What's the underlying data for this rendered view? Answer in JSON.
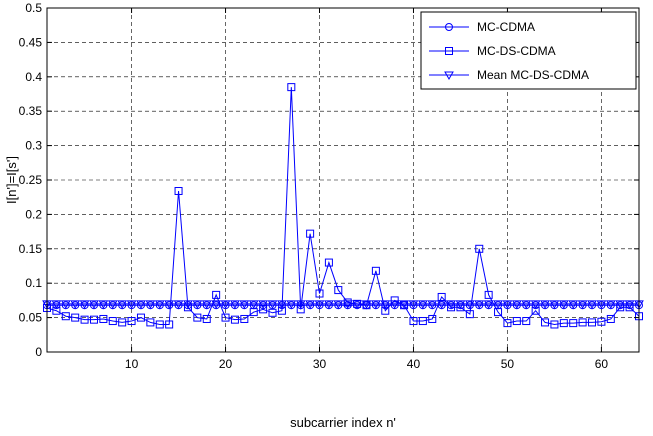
{
  "chart_data": {
    "type": "line",
    "xlabel": "subcarrier index n'",
    "ylabel": "I[n']=I[s']",
    "xlim": [
      1,
      64
    ],
    "ylim": [
      0,
      0.5
    ],
    "xticks": [
      10,
      20,
      30,
      40,
      50,
      60
    ],
    "yticks": [
      0,
      0.05,
      0.1,
      0.15,
      0.2,
      0.25,
      0.3,
      0.35,
      0.4,
      0.45,
      0.5
    ],
    "ytick_labels": [
      "0",
      "0.05",
      "0.1",
      "0.15",
      "0.2",
      "0.25",
      "0.3",
      "0.35",
      "0.4",
      "0.45",
      "0.5"
    ],
    "grid": true,
    "legend_position": "top-right",
    "x": [
      1,
      2,
      3,
      4,
      5,
      6,
      7,
      8,
      9,
      10,
      11,
      12,
      13,
      14,
      15,
      16,
      17,
      18,
      19,
      20,
      21,
      22,
      23,
      24,
      25,
      26,
      27,
      28,
      29,
      30,
      31,
      32,
      33,
      34,
      35,
      36,
      37,
      38,
      39,
      40,
      41,
      42,
      43,
      44,
      45,
      46,
      47,
      48,
      49,
      50,
      51,
      52,
      53,
      54,
      55,
      56,
      57,
      58,
      59,
      60,
      61,
      62,
      63,
      64
    ],
    "series": [
      {
        "name": "MC-CDMA",
        "marker": "circle",
        "color": "#0000ff",
        "values": [
          0.068,
          0.068,
          0.068,
          0.068,
          0.068,
          0.068,
          0.068,
          0.068,
          0.068,
          0.068,
          0.068,
          0.068,
          0.068,
          0.068,
          0.068,
          0.068,
          0.068,
          0.068,
          0.068,
          0.068,
          0.068,
          0.068,
          0.068,
          0.068,
          0.068,
          0.068,
          0.068,
          0.068,
          0.068,
          0.068,
          0.068,
          0.068,
          0.068,
          0.068,
          0.068,
          0.068,
          0.068,
          0.068,
          0.068,
          0.068,
          0.068,
          0.068,
          0.068,
          0.068,
          0.068,
          0.068,
          0.068,
          0.068,
          0.068,
          0.068,
          0.068,
          0.068,
          0.068,
          0.068,
          0.068,
          0.068,
          0.068,
          0.068,
          0.068,
          0.068,
          0.068,
          0.068,
          0.068,
          0.068
        ]
      },
      {
        "name": "MC-DS-CDMA",
        "marker": "square",
        "color": "#0000ff",
        "values": [
          0.064,
          0.06,
          0.052,
          0.05,
          0.047,
          0.047,
          0.048,
          0.045,
          0.043,
          0.045,
          0.05,
          0.043,
          0.04,
          0.04,
          0.234,
          0.065,
          0.05,
          0.048,
          0.083,
          0.05,
          0.047,
          0.048,
          0.058,
          0.062,
          0.057,
          0.06,
          0.385,
          0.062,
          0.172,
          0.085,
          0.13,
          0.09,
          0.072,
          0.07,
          0.068,
          0.118,
          0.06,
          0.075,
          0.068,
          0.045,
          0.045,
          0.048,
          0.08,
          0.065,
          0.065,
          0.055,
          0.15,
          0.083,
          0.058,
          0.042,
          0.045,
          0.045,
          0.06,
          0.043,
          0.04,
          0.042,
          0.042,
          0.043,
          0.043,
          0.044,
          0.048,
          0.065,
          0.065,
          0.052
        ]
      },
      {
        "name": "Mean MC-DS-CDMA",
        "marker": "triangle-down",
        "color": "#0000ff",
        "values": [
          0.07,
          0.07,
          0.07,
          0.07,
          0.07,
          0.07,
          0.07,
          0.07,
          0.07,
          0.07,
          0.07,
          0.07,
          0.07,
          0.07,
          0.07,
          0.07,
          0.07,
          0.07,
          0.07,
          0.07,
          0.07,
          0.07,
          0.07,
          0.07,
          0.07,
          0.07,
          0.07,
          0.07,
          0.07,
          0.07,
          0.07,
          0.07,
          0.07,
          0.07,
          0.07,
          0.07,
          0.07,
          0.07,
          0.07,
          0.07,
          0.07,
          0.07,
          0.07,
          0.07,
          0.07,
          0.07,
          0.07,
          0.07,
          0.07,
          0.07,
          0.07,
          0.07,
          0.07,
          0.07,
          0.07,
          0.07,
          0.07,
          0.07,
          0.07,
          0.07,
          0.07,
          0.07,
          0.07,
          0.07
        ]
      }
    ]
  }
}
